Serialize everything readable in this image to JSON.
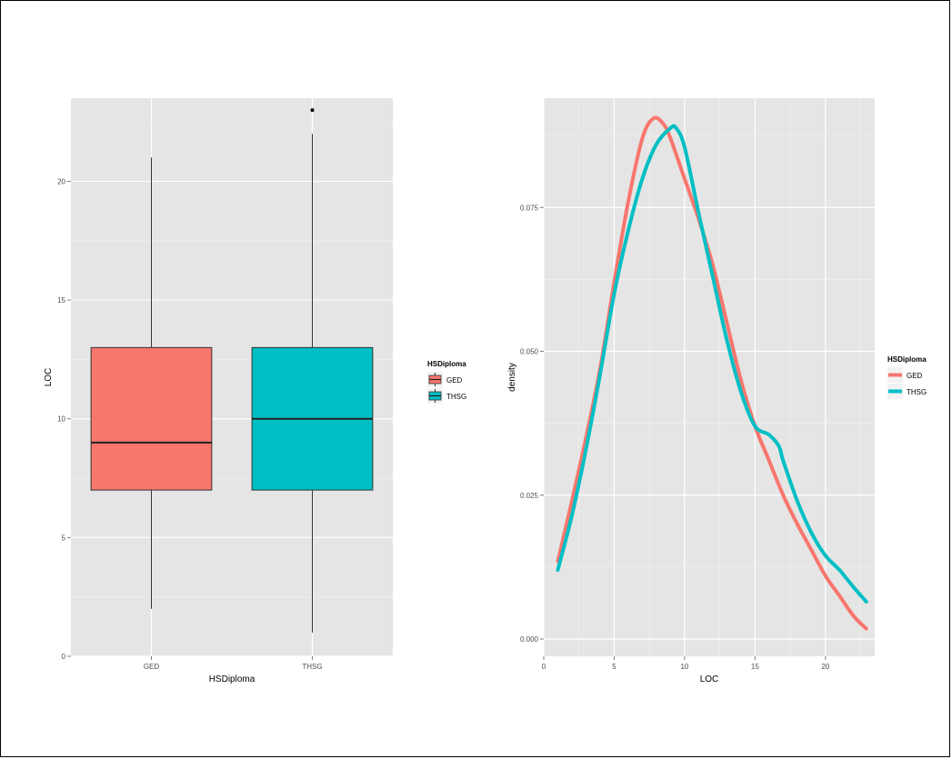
{
  "chart_data": [
    {
      "type": "box",
      "xlabel": "HSDiploma",
      "ylabel": "LOC",
      "categories": [
        "GED",
        "THSG"
      ],
      "colors": [
        "#f8766d",
        "#00bfc4"
      ],
      "ylim": [
        0,
        23.5
      ],
      "yticks": [
        0,
        5,
        10,
        15,
        20
      ],
      "boxes": [
        {
          "name": "GED",
          "min": 2,
          "q1": 7,
          "median": 9,
          "q3": 13,
          "max": 21,
          "outliers": []
        },
        {
          "name": "THSG",
          "min": 1,
          "q1": 7,
          "median": 10,
          "q3": 13,
          "max": 22,
          "outliers": [
            23
          ]
        }
      ],
      "legend": {
        "title": "HSDiploma",
        "entries": [
          "GED",
          "THSG"
        ],
        "position": "right"
      },
      "grid": true
    },
    {
      "type": "line",
      "xlabel": "LOC",
      "ylabel": "density",
      "xlim": [
        0,
        23.5
      ],
      "ylim": [
        -0.003,
        0.094
      ],
      "xticks": [
        0,
        5,
        10,
        15,
        20
      ],
      "yticks": [
        0.0,
        0.025,
        0.05,
        0.075
      ],
      "ytick_labels": [
        "0.000",
        "0.025",
        "0.050",
        "0.075"
      ],
      "series": [
        {
          "name": "GED",
          "color": "#f8766d",
          "x": [
            1,
            2,
            3,
            4,
            5,
            6,
            7,
            7.8,
            8.5,
            9,
            10,
            11,
            12,
            13,
            14,
            15,
            16,
            17,
            18,
            19,
            20,
            21,
            22,
            22.9
          ],
          "y": [
            0.0135,
            0.024,
            0.035,
            0.047,
            0.062,
            0.076,
            0.087,
            0.0905,
            0.0895,
            0.087,
            0.08,
            0.073,
            0.065,
            0.055,
            0.045,
            0.037,
            0.031,
            0.025,
            0.02,
            0.0155,
            0.011,
            0.0075,
            0.004,
            0.0018
          ]
        },
        {
          "name": "THSG",
          "color": "#00bfc4",
          "x": [
            1,
            2,
            3,
            4,
            5,
            6,
            7,
            8,
            9,
            9.4,
            10,
            11,
            12,
            13,
            14,
            15,
            16,
            16.7,
            17,
            18,
            19,
            20,
            21,
            22,
            22.9
          ],
          "y": [
            0.012,
            0.0215,
            0.033,
            0.046,
            0.06,
            0.071,
            0.08,
            0.086,
            0.0888,
            0.0888,
            0.0855,
            0.074,
            0.063,
            0.052,
            0.043,
            0.037,
            0.0355,
            0.0335,
            0.031,
            0.024,
            0.0185,
            0.0145,
            0.012,
            0.009,
            0.0065
          ]
        }
      ],
      "legend": {
        "title": "HSDiploma",
        "entries": [
          "GED",
          "THSG"
        ],
        "position": "right"
      },
      "grid": true
    }
  ]
}
